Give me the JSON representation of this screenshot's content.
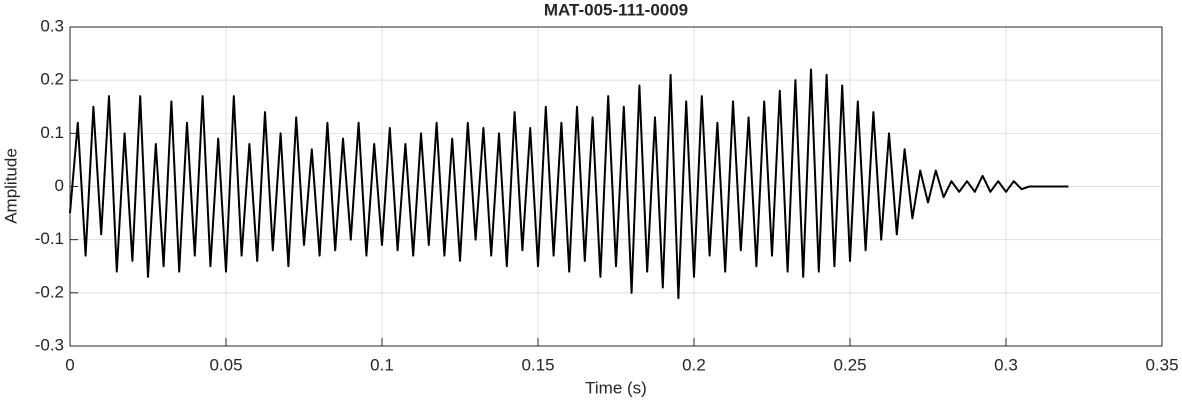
{
  "chart_data": {
    "type": "line",
    "title": "MAT-005-111-0009",
    "xlabel": "Time (s)",
    "ylabel": "Amplitude",
    "color": "#000000",
    "grid": true,
    "xlim": [
      0,
      0.35
    ],
    "xticks": [
      0,
      0.05,
      0.1,
      0.15,
      0.2,
      0.25,
      0.3,
      0.35
    ],
    "ylim": [
      -0.3,
      0.3
    ],
    "yticks": [
      -0.3,
      -0.2,
      -0.1,
      0,
      0.1,
      0.2,
      0.3
    ],
    "x": [
      0,
      0.0025,
      0.005,
      0.0075,
      0.01,
      0.0125,
      0.015,
      0.0175,
      0.02,
      0.0225,
      0.025,
      0.0275,
      0.03,
      0.0325,
      0.035,
      0.0375,
      0.04,
      0.0425,
      0.045,
      0.0475,
      0.05,
      0.0525,
      0.055,
      0.0575,
      0.06,
      0.0625,
      0.065,
      0.0675,
      0.07,
      0.0725,
      0.075,
      0.0775,
      0.08,
      0.0825,
      0.085,
      0.0875,
      0.09,
      0.0925,
      0.095,
      0.0975,
      0.1,
      0.1025,
      0.105,
      0.1075,
      0.11,
      0.1125,
      0.115,
      0.1175,
      0.12,
      0.1225,
      0.125,
      0.1275,
      0.13,
      0.1325,
      0.135,
      0.1375,
      0.14,
      0.1425,
      0.145,
      0.1475,
      0.15,
      0.1525,
      0.155,
      0.1575,
      0.16,
      0.1625,
      0.165,
      0.1675,
      0.17,
      0.1725,
      0.175,
      0.1775,
      0.18,
      0.1825,
      0.185,
      0.1875,
      0.19,
      0.1925,
      0.195,
      0.1975,
      0.2,
      0.2025,
      0.205,
      0.2075,
      0.21,
      0.2125,
      0.215,
      0.2175,
      0.22,
      0.2225,
      0.225,
      0.2275,
      0.23,
      0.2325,
      0.235,
      0.2375,
      0.24,
      0.2425,
      0.245,
      0.2475,
      0.25,
      0.2525,
      0.255,
      0.2575,
      0.26,
      0.2625,
      0.265,
      0.2675,
      0.27,
      0.2725,
      0.275,
      0.2775,
      0.28,
      0.2825,
      0.285,
      0.2875,
      0.29,
      0.2925,
      0.295,
      0.2975,
      0.3,
      0.3025,
      0.305,
      0.3075,
      0.31,
      0.3125,
      0.315,
      0.3175,
      0.32
    ],
    "values": [
      -0.05,
      0.12,
      -0.13,
      0.15,
      -0.09,
      0.17,
      -0.16,
      0.1,
      -0.14,
      0.17,
      -0.17,
      0.08,
      -0.15,
      0.16,
      -0.16,
      0.12,
      -0.13,
      0.17,
      -0.15,
      0.09,
      -0.16,
      0.17,
      -0.13,
      0.08,
      -0.14,
      0.14,
      -0.12,
      0.1,
      -0.15,
      0.13,
      -0.11,
      0.07,
      -0.13,
      0.12,
      -0.12,
      0.09,
      -0.1,
      0.12,
      -0.13,
      0.08,
      -0.11,
      0.11,
      -0.12,
      0.08,
      -0.13,
      0.1,
      -0.11,
      0.12,
      -0.13,
      0.09,
      -0.14,
      0.12,
      -0.1,
      0.11,
      -0.13,
      0.1,
      -0.15,
      0.14,
      -0.12,
      0.11,
      -0.15,
      0.15,
      -0.13,
      0.12,
      -0.16,
      0.15,
      -0.14,
      0.13,
      -0.17,
      0.17,
      -0.15,
      0.15,
      -0.2,
      0.19,
      -0.16,
      0.13,
      -0.19,
      0.21,
      -0.21,
      0.16,
      -0.17,
      0.17,
      -0.13,
      0.12,
      -0.16,
      0.16,
      -0.12,
      0.13,
      -0.15,
      0.16,
      -0.13,
      0.18,
      -0.16,
      0.2,
      -0.17,
      0.22,
      -0.16,
      0.21,
      -0.15,
      0.19,
      -0.14,
      0.16,
      -0.12,
      0.14,
      -0.1,
      0.1,
      -0.09,
      0.07,
      -0.06,
      0.03,
      -0.03,
      0.03,
      -0.02,
      0.01,
      -0.01,
      0.01,
      -0.01,
      0.02,
      -0.01,
      0.01,
      -0.01,
      0.01,
      -0.005,
      0,
      0,
      0,
      0,
      0,
      0
    ]
  }
}
